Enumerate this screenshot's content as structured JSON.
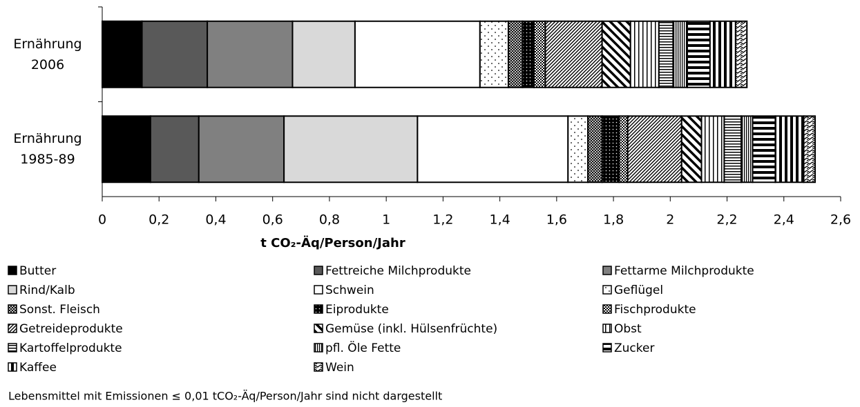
{
  "chart_data": {
    "type": "stacked-bar-horizontal",
    "categories": [
      "Ernährung 2006",
      "Ernährung 1985-89"
    ],
    "xlabel": "t CO₂-Äq/Person/Jahr",
    "note": "Lebensmittel mit Emissionen ≤ 0,01 tCO₂-Äq/Person/Jahr sind nicht dargestellt",
    "xlim": [
      0,
      2.6
    ],
    "xticks": [
      0,
      {
        "value": 0.2,
        "label": "0,2"
      },
      {
        "value": 0.4,
        "label": "0,4"
      },
      {
        "value": 0.6,
        "label": "0,6"
      },
      {
        "value": 0.8,
        "label": "0,8"
      },
      1,
      {
        "value": 1.2,
        "label": "1,2"
      },
      {
        "value": 1.4,
        "label": "1,4"
      },
      {
        "value": 1.6,
        "label": "1,6"
      },
      {
        "value": 1.8,
        "label": "1,8"
      },
      2,
      {
        "value": 2.2,
        "label": "2,2"
      },
      {
        "value": 2.4,
        "label": "2,4"
      },
      {
        "value": 2.6,
        "label": "2,6"
      }
    ],
    "grid": false,
    "series": [
      {
        "name": "Butter",
        "color": "#000000",
        "pattern": "solid",
        "values": [
          0.14,
          0.17
        ]
      },
      {
        "name": "Fettreiche Milchprodukte",
        "color": "#595959",
        "pattern": "solid",
        "values": [
          0.23,
          0.17
        ]
      },
      {
        "name": "Fettarme Milchprodukte",
        "color": "#808080",
        "pattern": "solid",
        "values": [
          0.3,
          0.3
        ]
      },
      {
        "name": "Rind/Kalb",
        "color": "#d9d9d9",
        "pattern": "solid",
        "values": [
          0.22,
          0.47
        ]
      },
      {
        "name": "Schwein",
        "color": "#ffffff",
        "pattern": "solid",
        "values": [
          0.44,
          0.53
        ]
      },
      {
        "name": "Geflügel",
        "color": "#000000",
        "pattern": "dots",
        "values": [
          0.1,
          0.07
        ]
      },
      {
        "name": "Sonst. Fleisch",
        "color": "#000000",
        "pattern": "crosshatch",
        "values": [
          0.05,
          0.05
        ]
      },
      {
        "name": "Eiprodukte",
        "color": "#000000",
        "pattern": "darkdots",
        "values": [
          0.04,
          0.06
        ]
      },
      {
        "name": "Fischprodukte",
        "color": "#000000",
        "pattern": "check",
        "values": [
          0.04,
          0.03
        ]
      },
      {
        "name": "Getreideprodukte",
        "color": "#000000",
        "pattern": "diag",
        "values": [
          0.2,
          0.19
        ]
      },
      {
        "name": "Gemüse (inkl. Hülsenfrüchte)",
        "color": "#000000",
        "pattern": "thickdiag",
        "values": [
          0.1,
          0.07
        ]
      },
      {
        "name": "Obst",
        "color": "#000000",
        "pattern": "vlines",
        "values": [
          0.1,
          0.08
        ]
      },
      {
        "name": "Kartoffelprodukte",
        "color": "#000000",
        "pattern": "hlines",
        "values": [
          0.05,
          0.06
        ]
      },
      {
        "name": "pfl. Öle Fette",
        "color": "#000000",
        "pattern": "vfine",
        "values": [
          0.05,
          0.04
        ]
      },
      {
        "name": "Zucker",
        "color": "#000000",
        "pattern": "hthick",
        "values": [
          0.08,
          0.08
        ]
      },
      {
        "name": "Kaffee",
        "color": "#000000",
        "pattern": "vthick",
        "values": [
          0.09,
          0.1
        ]
      },
      {
        "name": "Wein",
        "color": "#000000",
        "pattern": "zigzag",
        "values": [
          0.04,
          0.04
        ]
      }
    ]
  }
}
